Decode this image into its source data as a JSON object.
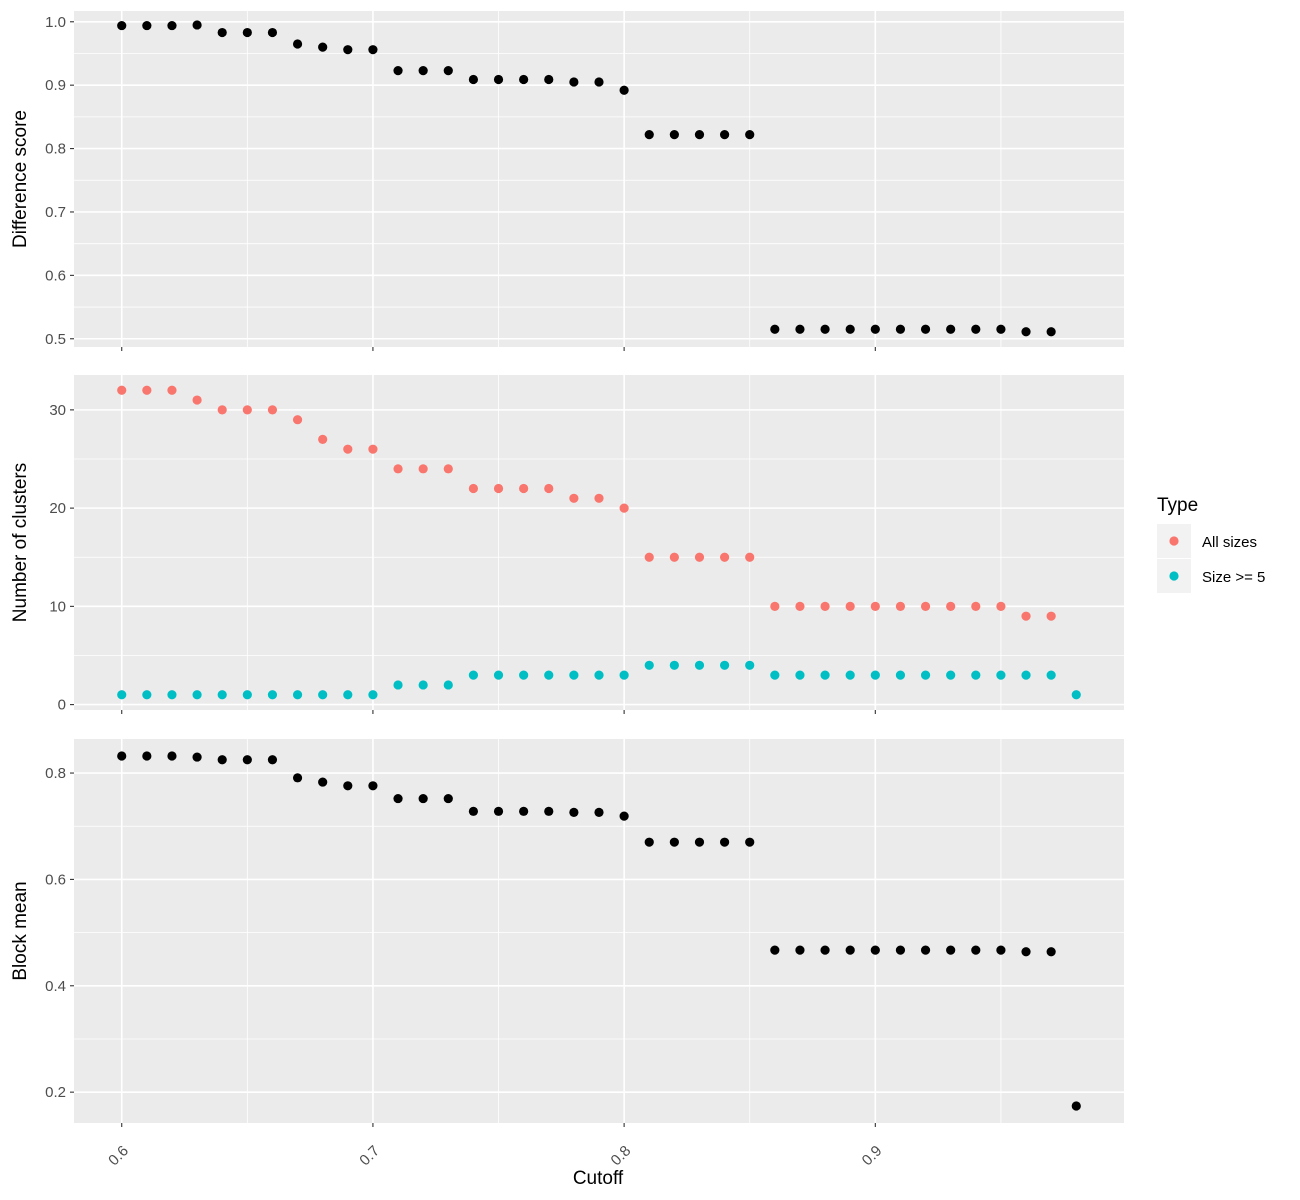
{
  "chart_data": [
    {
      "type": "scatter",
      "ylabel": "Difference score",
      "xlim": [
        0.581,
        0.999
      ],
      "ylim": [
        0.487,
        1.017
      ],
      "yticks": [
        0.5,
        0.6,
        0.7,
        0.8,
        0.9,
        1.0
      ],
      "ytick_labels": [
        "0.5",
        "0.6",
        "0.7",
        "0.8",
        "0.9",
        "1.0"
      ],
      "grid": true,
      "series": [
        {
          "color": "#000000",
          "x": [
            0.6,
            0.61,
            0.62,
            0.63,
            0.64,
            0.65,
            0.66,
            0.67,
            0.68,
            0.69,
            0.7,
            0.71,
            0.72,
            0.73,
            0.74,
            0.75,
            0.76,
            0.77,
            0.78,
            0.79,
            0.8,
            0.81,
            0.82,
            0.83,
            0.84,
            0.85,
            0.86,
            0.87,
            0.88,
            0.89,
            0.9,
            0.91,
            0.92,
            0.93,
            0.94,
            0.95,
            0.96,
            0.97
          ],
          "y": [
            0.994,
            0.994,
            0.994,
            0.995,
            0.983,
            0.983,
            0.983,
            0.965,
            0.96,
            0.956,
            0.956,
            0.923,
            0.923,
            0.923,
            0.909,
            0.909,
            0.909,
            0.909,
            0.905,
            0.905,
            0.892,
            0.822,
            0.822,
            0.822,
            0.822,
            0.822,
            0.515,
            0.515,
            0.515,
            0.515,
            0.515,
            0.515,
            0.515,
            0.515,
            0.515,
            0.515,
            0.511,
            0.511
          ]
        }
      ]
    },
    {
      "type": "scatter",
      "ylabel": "Number of clusters",
      "xlim": [
        0.581,
        0.999
      ],
      "ylim": [
        -0.55,
        33.55
      ],
      "yticks": [
        0,
        10,
        20,
        30
      ],
      "ytick_labels": [
        "0",
        "10",
        "20",
        "30"
      ],
      "grid": true,
      "series": [
        {
          "name": "All sizes",
          "color": "#F8766D",
          "x": [
            0.6,
            0.61,
            0.62,
            0.63,
            0.64,
            0.65,
            0.66,
            0.67,
            0.68,
            0.69,
            0.7,
            0.71,
            0.72,
            0.73,
            0.74,
            0.75,
            0.76,
            0.77,
            0.78,
            0.79,
            0.8,
            0.81,
            0.82,
            0.83,
            0.84,
            0.85,
            0.86,
            0.87,
            0.88,
            0.89,
            0.9,
            0.91,
            0.92,
            0.93,
            0.94,
            0.95,
            0.96,
            0.97
          ],
          "y": [
            32,
            32,
            32,
            31,
            30,
            30,
            30,
            29,
            27,
            26,
            26,
            24,
            24,
            24,
            22,
            22,
            22,
            22,
            21,
            21,
            20,
            15,
            15,
            15,
            15,
            15,
            10,
            10,
            10,
            10,
            10,
            10,
            10,
            10,
            10,
            10,
            9,
            9
          ]
        },
        {
          "name": "Size >= 5",
          "color": "#00BFC4",
          "x": [
            0.6,
            0.61,
            0.62,
            0.63,
            0.64,
            0.65,
            0.66,
            0.67,
            0.68,
            0.69,
            0.7,
            0.71,
            0.72,
            0.73,
            0.74,
            0.75,
            0.76,
            0.77,
            0.78,
            0.79,
            0.8,
            0.81,
            0.82,
            0.83,
            0.84,
            0.85,
            0.86,
            0.87,
            0.88,
            0.89,
            0.9,
            0.91,
            0.92,
            0.93,
            0.94,
            0.95,
            0.96,
            0.97,
            0.98
          ],
          "y": [
            1,
            1,
            1,
            1,
            1,
            1,
            1,
            1,
            1,
            1,
            1,
            2,
            2,
            2,
            3,
            3,
            3,
            3,
            3,
            3,
            3,
            4,
            4,
            4,
            4,
            4,
            3,
            3,
            3,
            3,
            3,
            3,
            3,
            3,
            3,
            3,
            3,
            3,
            1
          ]
        }
      ]
    },
    {
      "type": "scatter",
      "ylabel": "Block mean",
      "xlabel": "Cutoff",
      "xlim": [
        0.581,
        0.999
      ],
      "ylim": [
        0.142,
        0.864
      ],
      "yticks": [
        0.2,
        0.4,
        0.6,
        0.8
      ],
      "ytick_labels": [
        "0.2",
        "0.4",
        "0.6",
        "0.8"
      ],
      "xticks": [
        0.6,
        0.7,
        0.8,
        0.9
      ],
      "xtick_labels": [
        "0.6",
        "0.7",
        "0.8",
        "0.9"
      ],
      "grid": true,
      "series": [
        {
          "color": "#000000",
          "x": [
            0.6,
            0.61,
            0.62,
            0.63,
            0.64,
            0.65,
            0.66,
            0.67,
            0.68,
            0.69,
            0.7,
            0.71,
            0.72,
            0.73,
            0.74,
            0.75,
            0.76,
            0.77,
            0.78,
            0.79,
            0.8,
            0.81,
            0.82,
            0.83,
            0.84,
            0.85,
            0.86,
            0.87,
            0.88,
            0.89,
            0.9,
            0.91,
            0.92,
            0.93,
            0.94,
            0.95,
            0.96,
            0.97,
            0.98
          ],
          "y": [
            0.832,
            0.832,
            0.832,
            0.83,
            0.825,
            0.825,
            0.825,
            0.791,
            0.783,
            0.776,
            0.776,
            0.752,
            0.752,
            0.752,
            0.728,
            0.728,
            0.728,
            0.728,
            0.726,
            0.726,
            0.719,
            0.67,
            0.67,
            0.67,
            0.67,
            0.67,
            0.467,
            0.467,
            0.467,
            0.467,
            0.467,
            0.467,
            0.467,
            0.467,
            0.467,
            0.467,
            0.464,
            0.464,
            0.174
          ]
        }
      ]
    }
  ],
  "legend": {
    "title": "Type",
    "position": "right",
    "items": [
      {
        "label": "All sizes",
        "color": "#F8766D"
      },
      {
        "label": "Size >= 5",
        "color": "#00BFC4"
      }
    ]
  }
}
